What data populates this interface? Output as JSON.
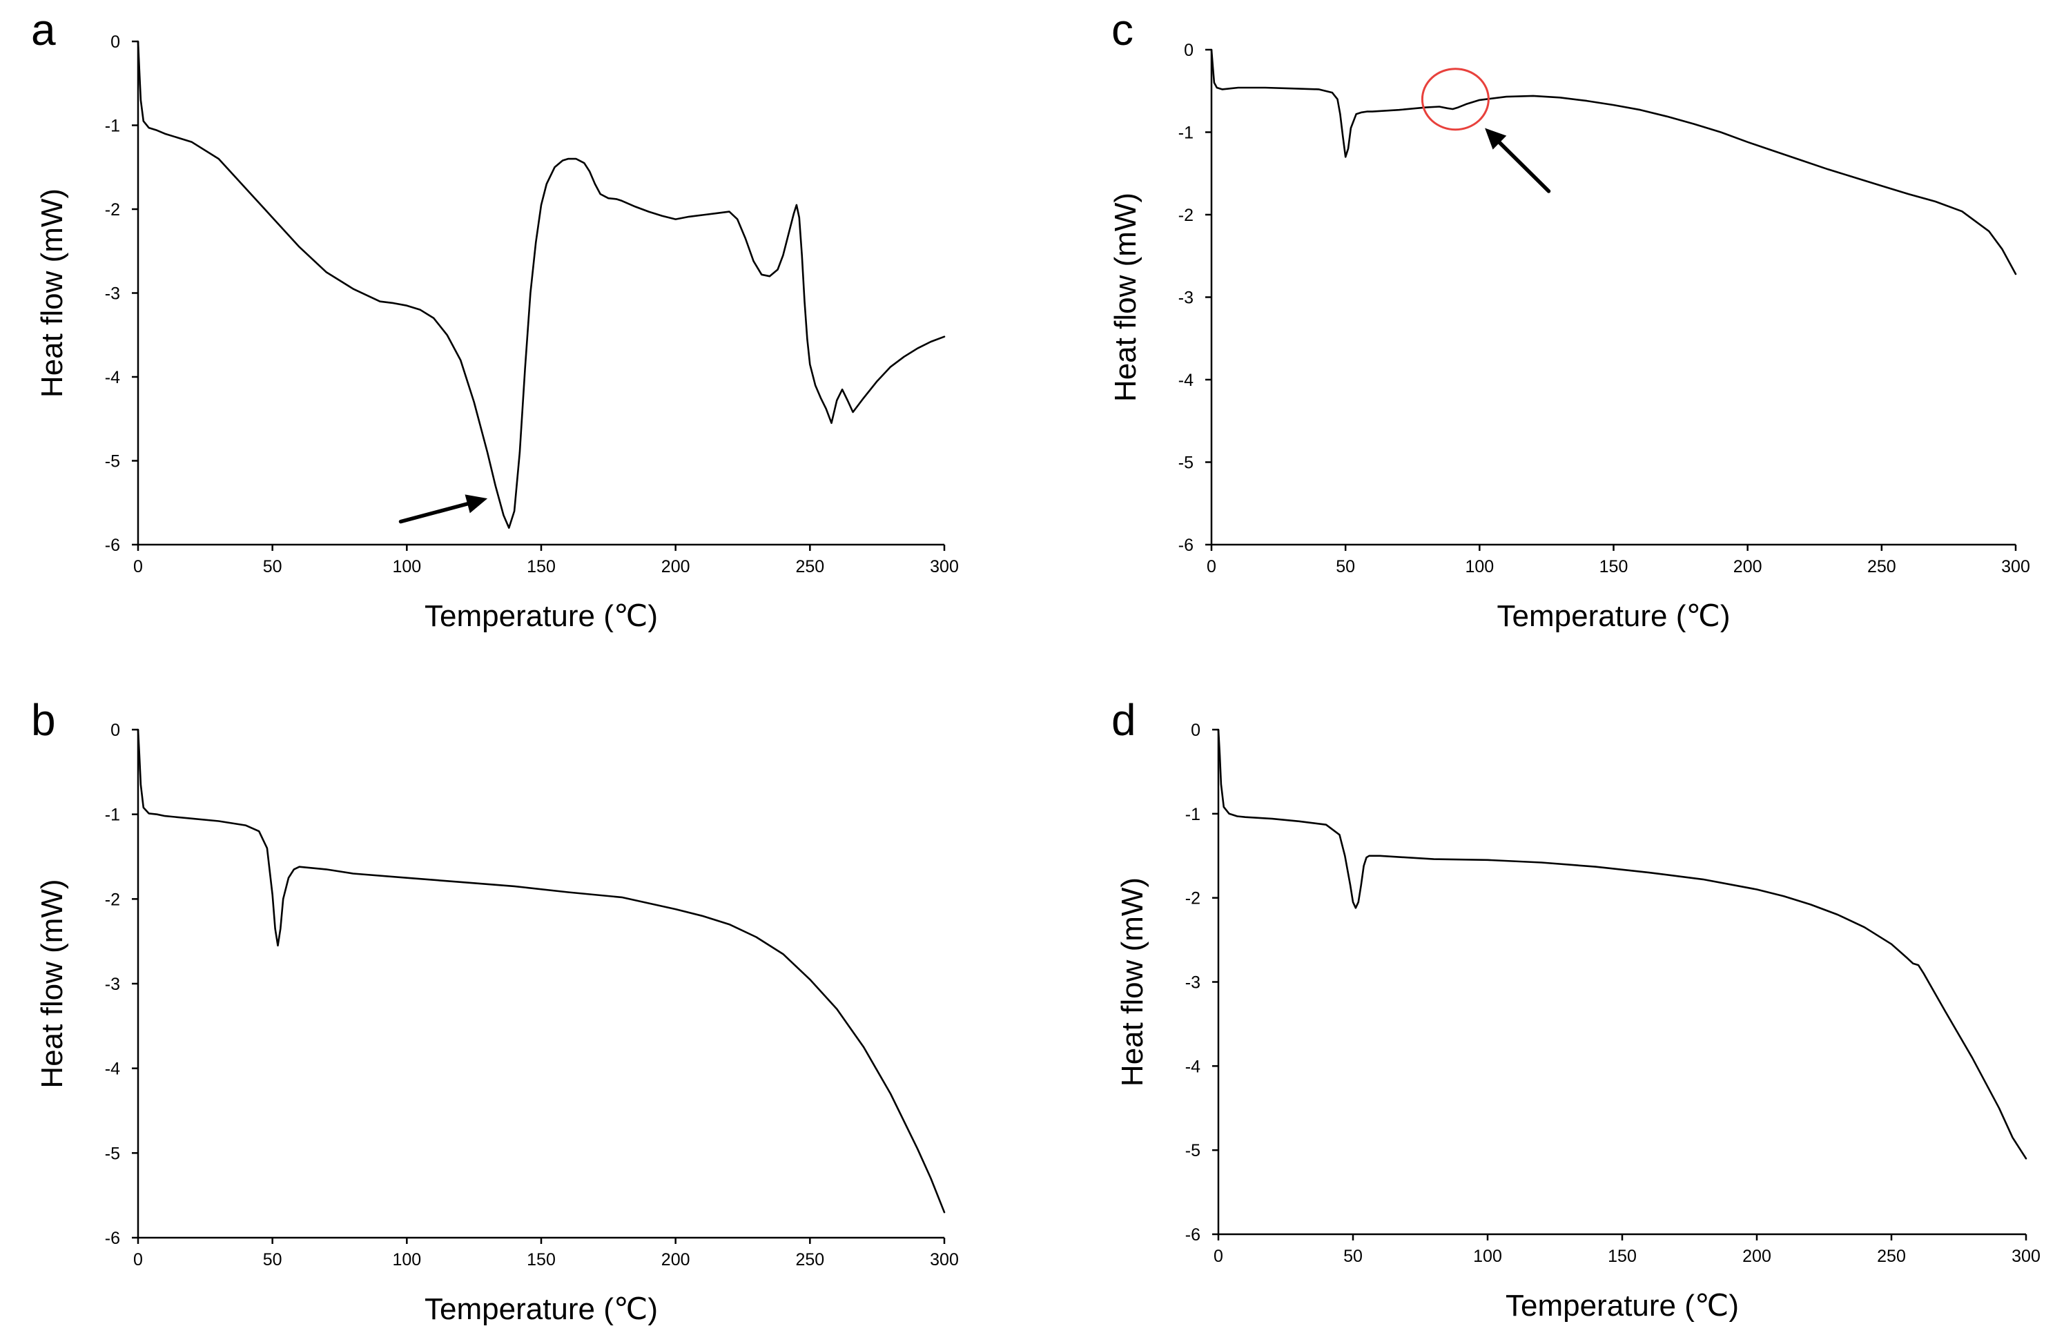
{
  "chart_data": [
    {
      "panel": "a",
      "type": "line",
      "xlabel": "Temperature (℃)",
      "ylabel": "Heat flow (mW)",
      "xlim": [
        0,
        300
      ],
      "ylim": [
        -6,
        0
      ],
      "xticks": [
        0,
        50,
        100,
        150,
        200,
        250,
        300
      ],
      "yticks": [
        0,
        -1,
        -2,
        -3,
        -4,
        -5,
        -6
      ],
      "series": [
        {
          "name": "a",
          "x": [
            0,
            0.5,
            1,
            2,
            4,
            7,
            10,
            20,
            30,
            40,
            50,
            60,
            70,
            80,
            90,
            95,
            100,
            105,
            110,
            115,
            120,
            125,
            130,
            133,
            136,
            138,
            140,
            142,
            144,
            146,
            148,
            150,
            152,
            155,
            158,
            160,
            163,
            166,
            168,
            170,
            172,
            175,
            178,
            180,
            185,
            190,
            195,
            200,
            205,
            210,
            215,
            220,
            223,
            226,
            229,
            232,
            235,
            238,
            240,
            242,
            244,
            245,
            246,
            247,
            248,
            249,
            250,
            252,
            254,
            256,
            258,
            260,
            262,
            264,
            266,
            270,
            275,
            280,
            285,
            290,
            295,
            300
          ],
          "y": [
            0,
            -0.35,
            -0.7,
            -0.95,
            -1.03,
            -1.06,
            -1.1,
            -1.2,
            -1.4,
            -1.75,
            -2.1,
            -2.45,
            -2.75,
            -2.95,
            -3.1,
            -3.12,
            -3.15,
            -3.2,
            -3.3,
            -3.5,
            -3.8,
            -4.3,
            -4.9,
            -5.3,
            -5.65,
            -5.8,
            -5.6,
            -4.9,
            -3.9,
            -3.0,
            -2.4,
            -1.95,
            -1.7,
            -1.5,
            -1.42,
            -1.4,
            -1.4,
            -1.45,
            -1.55,
            -1.7,
            -1.82,
            -1.87,
            -1.88,
            -1.9,
            -1.97,
            -2.03,
            -2.08,
            -2.12,
            -2.09,
            -2.07,
            -2.05,
            -2.03,
            -2.12,
            -2.35,
            -2.62,
            -2.78,
            -2.8,
            -2.72,
            -2.55,
            -2.3,
            -2.05,
            -1.95,
            -2.1,
            -2.55,
            -3.1,
            -3.55,
            -3.85,
            -4.1,
            -4.25,
            -4.38,
            -4.55,
            -4.28,
            -4.15,
            -4.28,
            -4.42,
            -4.25,
            -4.05,
            -3.88,
            -3.76,
            -3.66,
            -3.58,
            -3.52
          ]
        }
      ],
      "annotations": [
        {
          "kind": "arrow",
          "target_x": 130,
          "target_y": -5.45
        }
      ]
    },
    {
      "panel": "b",
      "type": "line",
      "xlabel": "Temperature (℃)",
      "ylabel": "Heat flow (mW)",
      "xlim": [
        0,
        300
      ],
      "ylim": [
        -6,
        0
      ],
      "xticks": [
        0,
        50,
        100,
        150,
        200,
        250,
        300
      ],
      "yticks": [
        0,
        -1,
        -2,
        -3,
        -4,
        -5,
        -6
      ],
      "series": [
        {
          "name": "b",
          "x": [
            0,
            0.5,
            1,
            2,
            4,
            7,
            10,
            20,
            30,
            40,
            45,
            48,
            50,
            51,
            52,
            53,
            54,
            56,
            58,
            60,
            70,
            80,
            100,
            120,
            140,
            160,
            180,
            190,
            200,
            210,
            220,
            230,
            240,
            250,
            260,
            270,
            280,
            290,
            295,
            300
          ],
          "y": [
            0,
            -0.3,
            -0.65,
            -0.92,
            -0.99,
            -1.0,
            -1.02,
            -1.05,
            -1.08,
            -1.13,
            -1.2,
            -1.4,
            -1.95,
            -2.35,
            -2.55,
            -2.35,
            -2.0,
            -1.75,
            -1.65,
            -1.62,
            -1.65,
            -1.7,
            -1.75,
            -1.8,
            -1.85,
            -1.92,
            -1.98,
            -2.05,
            -2.12,
            -2.2,
            -2.3,
            -2.45,
            -2.65,
            -2.95,
            -3.3,
            -3.75,
            -4.3,
            -4.95,
            -5.3,
            -5.7
          ]
        }
      ]
    },
    {
      "panel": "c",
      "type": "line",
      "xlabel": "Temperature (℃)",
      "ylabel": "Heat flow (mW)",
      "xlim": [
        0,
        300
      ],
      "ylim": [
        -6,
        0
      ],
      "xticks": [
        0,
        50,
        100,
        150,
        200,
        250,
        300
      ],
      "yticks": [
        0,
        -1,
        -2,
        -3,
        -4,
        -5,
        -6
      ],
      "series": [
        {
          "name": "c",
          "x": [
            0,
            0.5,
            1,
            2,
            4,
            7,
            10,
            20,
            30,
            40,
            45,
            47,
            48,
            49,
            50,
            51,
            52,
            54,
            56,
            58,
            60,
            70,
            80,
            85,
            88,
            90,
            92,
            95,
            100,
            110,
            120,
            130,
            140,
            150,
            160,
            170,
            180,
            190,
            200,
            210,
            220,
            230,
            240,
            250,
            260,
            270,
            280,
            290,
            295,
            300
          ],
          "y": [
            0,
            -0.2,
            -0.4,
            -0.46,
            -0.48,
            -0.47,
            -0.46,
            -0.46,
            -0.47,
            -0.48,
            -0.52,
            -0.6,
            -0.78,
            -1.05,
            -1.3,
            -1.2,
            -0.95,
            -0.78,
            -0.76,
            -0.75,
            -0.75,
            -0.73,
            -0.7,
            -0.69,
            -0.71,
            -0.72,
            -0.7,
            -0.66,
            -0.61,
            -0.57,
            -0.56,
            -0.58,
            -0.62,
            -0.67,
            -0.73,
            -0.81,
            -0.9,
            -1.0,
            -1.12,
            -1.23,
            -1.34,
            -1.45,
            -1.55,
            -1.65,
            -1.75,
            -1.84,
            -1.96,
            -2.2,
            -2.42,
            -2.72
          ]
        }
      ],
      "annotations": [
        {
          "kind": "circle",
          "center_x": 91,
          "center_y": -0.6
        },
        {
          "kind": "arrow",
          "target_x": 102,
          "target_y": -0.95
        }
      ]
    },
    {
      "panel": "d",
      "type": "line",
      "xlabel": "Temperature (℃)",
      "ylabel": "Heat flow (mW)",
      "xlim": [
        0,
        300
      ],
      "ylim": [
        -6,
        0
      ],
      "xticks": [
        0,
        50,
        100,
        150,
        200,
        250,
        300
      ],
      "yticks": [
        0,
        -1,
        -2,
        -3,
        -4,
        -5,
        -6
      ],
      "series": [
        {
          "name": "d",
          "x": [
            0,
            0.5,
            1,
            2,
            4,
            7,
            10,
            20,
            30,
            40,
            45,
            47,
            49,
            50,
            51,
            52,
            53,
            54,
            55,
            56,
            58,
            60,
            70,
            80,
            100,
            120,
            140,
            160,
            180,
            200,
            210,
            220,
            230,
            240,
            250,
            256,
            258,
            260,
            262,
            270,
            280,
            290,
            295,
            298,
            300
          ],
          "y": [
            0,
            -0.3,
            -0.65,
            -0.92,
            -1.0,
            -1.03,
            -1.04,
            -1.06,
            -1.09,
            -1.13,
            -1.25,
            -1.5,
            -1.85,
            -2.05,
            -2.12,
            -2.05,
            -1.85,
            -1.62,
            -1.52,
            -1.5,
            -1.5,
            -1.5,
            -1.52,
            -1.54,
            -1.55,
            -1.58,
            -1.63,
            -1.7,
            -1.78,
            -1.9,
            -1.98,
            -2.08,
            -2.2,
            -2.35,
            -2.55,
            -2.72,
            -2.78,
            -2.8,
            -2.9,
            -3.35,
            -3.9,
            -4.5,
            -4.85,
            -5.0,
            -5.1
          ]
        }
      ]
    }
  ]
}
